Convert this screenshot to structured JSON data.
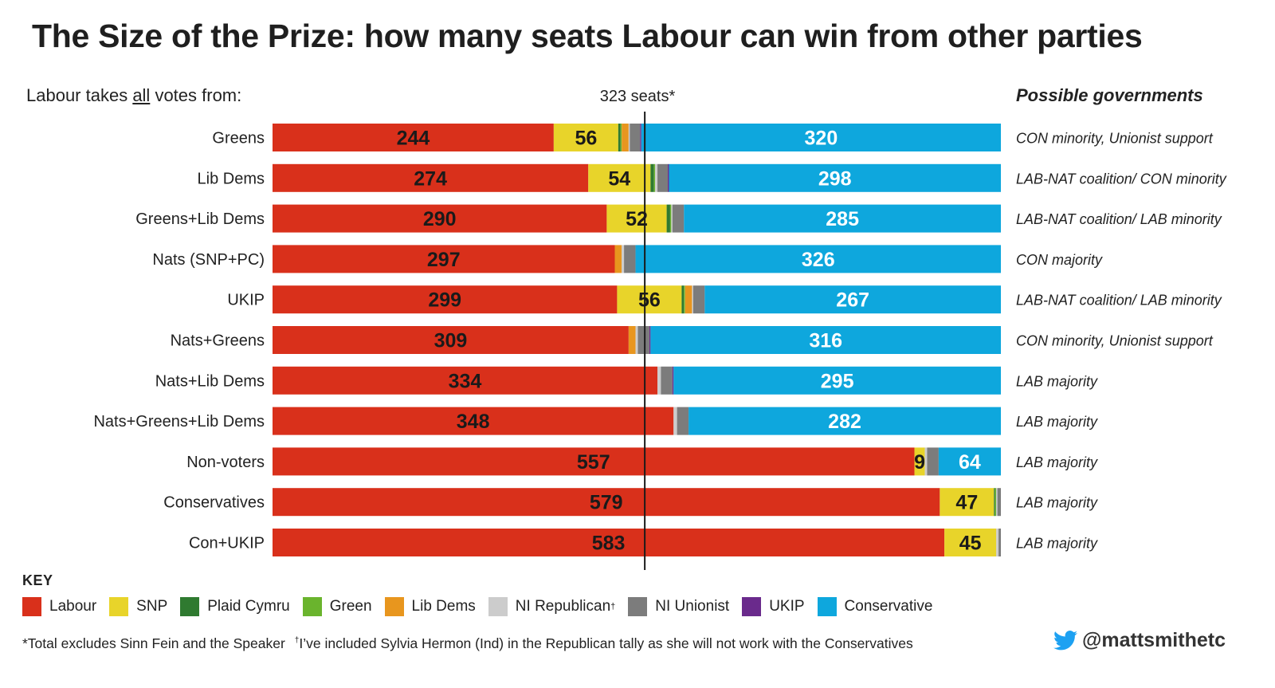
{
  "title": "The Size of the Prize: how many seats Labour can win from other parties",
  "left_heading": {
    "prefix": "Labour takes ",
    "emph": "all",
    "suffix": " votes from:"
  },
  "threshold_label": "323 seats*",
  "governments_heading": "Possible governments",
  "colors": {
    "Labour": "#d9301b",
    "SNP": "#e8d42a",
    "Plaid Cymru": "#2f7a30",
    "Green": "#6ab42d",
    "Lib Dems": "#e8961e",
    "NI Republican": "#cccccc",
    "NI Unionist": "#7c7c7c",
    "UKIP": "#6a2a8c",
    "Conservative": "#0ea7dd"
  },
  "chart_data": {
    "type": "bar",
    "stacked": true,
    "orientation": "horizontal",
    "total_seats": 632,
    "threshold": 323,
    "categories": [
      "Greens",
      "Lib Dems",
      "Greens+Lib Dems",
      "Nats (SNP+PC)",
      "UKIP",
      "Nats+Greens",
      "Nats+Lib Dems",
      "Nats+Greens+Lib Dems",
      "Non-voters",
      "Conservatives",
      "Con+UKIP"
    ],
    "series": [
      {
        "name": "Labour",
        "values": [
          244,
          274,
          290,
          297,
          299,
          309,
          334,
          348,
          557,
          579,
          583
        ]
      },
      {
        "name": "SNP",
        "values": [
          56,
          54,
          52,
          0,
          56,
          0,
          0,
          0,
          9,
          47,
          45
        ]
      },
      {
        "name": "Plaid Cymru",
        "values": [
          2,
          3,
          3,
          0,
          2,
          0,
          0,
          0,
          0,
          1,
          0
        ]
      },
      {
        "name": "Green",
        "values": [
          1,
          1,
          1,
          0,
          1,
          0,
          0,
          0,
          0,
          1,
          0
        ]
      },
      {
        "name": "Lib Dems",
        "values": [
          6,
          0,
          0,
          6,
          6,
          6,
          0,
          0,
          0,
          0,
          0
        ]
      },
      {
        "name": "NI Republican",
        "values": [
          1,
          2,
          1,
          2,
          1,
          2,
          3,
          3,
          2,
          1,
          2
        ]
      },
      {
        "name": "NI Unionist",
        "values": [
          9,
          9,
          10,
          10,
          10,
          10,
          10,
          10,
          10,
          10,
          10
        ]
      },
      {
        "name": "UKIP",
        "values": [
          1,
          1,
          0,
          0,
          0,
          1,
          1,
          0,
          0,
          0,
          0
        ]
      },
      {
        "name": "Conservative",
        "values": [
          320,
          298,
          285,
          326,
          267,
          316,
          295,
          282,
          64,
          0,
          0
        ]
      }
    ],
    "governments": [
      "CON minority, Unionist support",
      "LAB-NAT coalition/ CON minority",
      "LAB-NAT coalition/ LAB minority",
      "CON majority",
      "LAB-NAT coalition/ LAB minority",
      "CON minority, Unionist support",
      "LAB majority",
      "LAB majority",
      "LAB majority",
      "LAB majority",
      "LAB majority"
    ],
    "value_labels": {
      "Labour": [
        "244",
        "274",
        "290",
        "297",
        "299",
        "309",
        "334",
        "348",
        "557",
        "579",
        "583"
      ],
      "SNP": [
        "56",
        "54",
        "52",
        "",
        "56",
        "",
        "",
        "",
        "9",
        "47",
        "45"
      ],
      "Conservative": [
        "320",
        "298",
        "285",
        "326",
        "267",
        "316",
        "295",
        "282",
        "64",
        "",
        ""
      ]
    }
  },
  "key": {
    "title": "KEY",
    "items": [
      {
        "label": "Labour",
        "color": "#d9301b"
      },
      {
        "label": "SNP",
        "color": "#e8d42a"
      },
      {
        "label": "Plaid Cymru",
        "color": "#2f7a30"
      },
      {
        "label": "Green",
        "color": "#6ab42d"
      },
      {
        "label": "Lib Dems",
        "color": "#e8961e"
      },
      {
        "label": "NI Republican",
        "sup": "†",
        "color": "#cccccc"
      },
      {
        "label": "NI Unionist",
        "color": "#7c7c7c"
      },
      {
        "label": "UKIP",
        "color": "#6a2a8c"
      },
      {
        "label": "Conservative",
        "color": "#0ea7dd"
      }
    ]
  },
  "footnotes": {
    "first": "*Total excludes Sinn Fein and the Speaker",
    "dagger": "†",
    "second": "I’ve included Sylvia Hermon (Ind) in the Republican tally as she will not work with the Conservatives"
  },
  "twitter_handle": "@mattsmithetc"
}
